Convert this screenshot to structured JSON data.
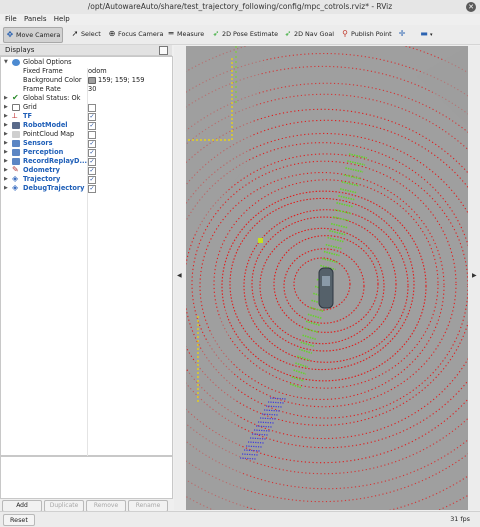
{
  "window": {
    "title": "/opt/AutowareAuto/share/test_trajectory_following/config/mpc_cotrols.rviz* - RViz"
  },
  "menu": [
    "File",
    "Panels",
    "Help"
  ],
  "toolbar": [
    {
      "label": "Move Camera",
      "icon": "move-camera-icon"
    },
    {
      "label": "Select",
      "icon": "select-cursor-icon"
    },
    {
      "label": "Focus Camera",
      "icon": "focus-camera-icon"
    },
    {
      "label": "Measure",
      "icon": "ruler-icon"
    },
    {
      "label": "2D Pose Estimate",
      "icon": "green-arrow-icon"
    },
    {
      "label": "2D Nav Goal",
      "icon": "green-arrow-icon"
    },
    {
      "label": "Publish Point",
      "icon": "map-pin-icon"
    },
    {
      "label": "",
      "icon": "crosshair-plus-icon"
    },
    {
      "label": "",
      "icon": "dropdown-minus-icon"
    }
  ],
  "displays": {
    "title": "Displays",
    "rows": [
      {
        "label": "Global Options",
        "level": 0,
        "expanded": true,
        "icon": "globe-icon"
      },
      {
        "label": "Fixed Frame",
        "level": 1,
        "value": "odom"
      },
      {
        "label": "Background Color",
        "level": 1,
        "value": "159; 159; 159",
        "swatch": "#9f9f9f"
      },
      {
        "label": "Frame Rate",
        "level": 1,
        "value": "30"
      },
      {
        "label": "Global Status: Ok",
        "level": 0,
        "expanded": false,
        "icon": "check-icon"
      },
      {
        "label": "Grid",
        "level": 0,
        "expanded": false,
        "icon": "grid-icon",
        "checked": false
      },
      {
        "label": "TF",
        "level": 0,
        "expanded": false,
        "icon": "tf-icon",
        "checked": true,
        "bold": true
      },
      {
        "label": "RobotModel",
        "level": 0,
        "expanded": false,
        "icon": "robot-icon",
        "checked": true,
        "bold": true
      },
      {
        "label": "PointCloud Map",
        "level": 0,
        "expanded": false,
        "icon": "pointcloud-icon",
        "checked": false
      },
      {
        "label": "Sensors",
        "level": 0,
        "expanded": false,
        "icon": "folder-icon",
        "checked": true,
        "bold": true
      },
      {
        "label": "Perception",
        "level": 0,
        "expanded": false,
        "icon": "folder-icon",
        "checked": true,
        "bold": true
      },
      {
        "label": "RecordReplayD...",
        "level": 0,
        "expanded": false,
        "icon": "folder-icon",
        "checked": true,
        "bold": true
      },
      {
        "label": "Odometry",
        "level": 0,
        "expanded": false,
        "icon": "odometry-icon",
        "checked": true,
        "bold": true
      },
      {
        "label": "Trajectory",
        "level": 0,
        "expanded": false,
        "icon": "trajectory-icon",
        "checked": true,
        "bold": true
      },
      {
        "label": "DebugTrajectory",
        "level": 0,
        "expanded": false,
        "icon": "trajectory-icon",
        "checked": true,
        "bold": true
      }
    ]
  },
  "buttons": [
    {
      "label": "Add",
      "enabled": true
    },
    {
      "label": "Duplicate",
      "enabled": false
    },
    {
      "label": "Remove",
      "enabled": false
    },
    {
      "label": "Rename",
      "enabled": false
    }
  ],
  "status": {
    "reset_label": "Reset",
    "fps": "31 fps"
  },
  "colors": {
    "background": "#9f9f9f",
    "laser": "#e11c1c",
    "trajectory": "#66d12e",
    "debug": "#3a3ae0",
    "accent": "#1f5fb8"
  }
}
